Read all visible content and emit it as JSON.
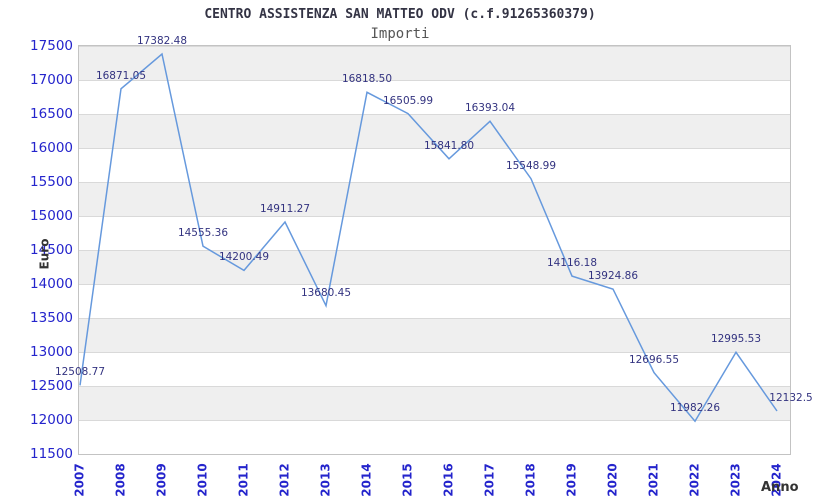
{
  "chart_data": {
    "type": "line",
    "title": "CENTRO ASSISTENZA SAN MATTEO ODV (c.f.91265360379)",
    "subtitle": "Importi",
    "xlabel": "Anno",
    "ylabel": "Euro",
    "categories": [
      "2007",
      "2008",
      "2009",
      "2010",
      "2011",
      "2012",
      "2013",
      "2014",
      "2015",
      "2016",
      "2017",
      "2018",
      "2019",
      "2020",
      "2021",
      "2022",
      "2023",
      "2024"
    ],
    "values": [
      12508.77,
      16871.05,
      17382.48,
      14555.36,
      14200.49,
      14911.27,
      13680.45,
      16818.5,
      16505.99,
      15841.8,
      16393.04,
      15548.99,
      14116.18,
      13924.86,
      12696.55,
      11982.26,
      12995.53,
      12132.5
    ],
    "point_labels": [
      "12508.77",
      "16871.05",
      "17382.48",
      "14555.36",
      "14200.49",
      "14911.27",
      "13680.45",
      "16818.50",
      "16505.99",
      "15841.80",
      "16393.04",
      "15548.99",
      "14116.18",
      "13924.86",
      "12696.55",
      "11982.26",
      "12995.53",
      "12132.5"
    ],
    "ylim": [
      11500,
      17500
    ],
    "ytick_step": 500,
    "grid": true,
    "legend": "none",
    "colors": {
      "line": "#6699dd",
      "tick_labels": "#2424cc",
      "point_labels": "#333380",
      "band": "#efefef",
      "gridline": "#d9d9d9",
      "title": "#333344",
      "subtitle": "#555555",
      "axis_titles": "#333333",
      "plot_border": "#c3c3c3",
      "background": "#ffffff"
    }
  }
}
